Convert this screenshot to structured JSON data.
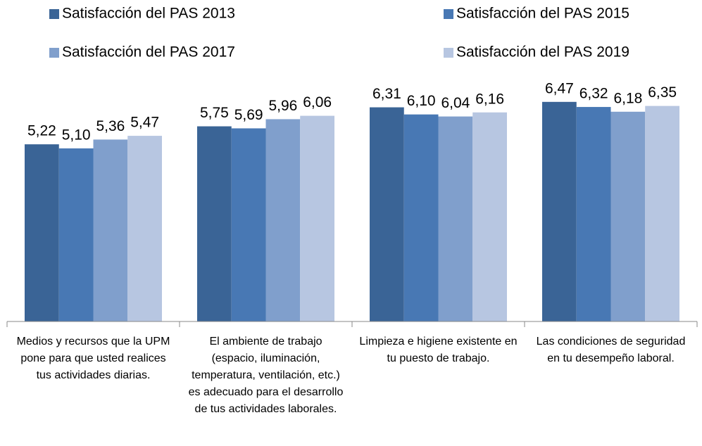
{
  "chart_data": {
    "type": "bar",
    "categories": [
      "Medios y recursos que la UPM pone para que usted realices tus actividades diarias.",
      "El ambiente de trabajo (espacio, iluminación, temperatura, ventilación, etc.) es adecuado para el desarrollo de tus actividades laborales.",
      "Limpieza e higiene existente en tu puesto de trabajo.",
      "Las condiciones de seguridad en tu desempeño laboral."
    ],
    "series": [
      {
        "name": "Satisfacción del PAS 2013",
        "color": "#3a6496",
        "values": [
          5.22,
          5.75,
          6.31,
          6.47
        ],
        "value_labels": [
          "5,22",
          "5,75",
          "6,31",
          "6,47"
        ]
      },
      {
        "name": "Satisfacción del PAS 2015",
        "color": "#4878b4",
        "values": [
          5.1,
          5.69,
          6.1,
          6.32
        ],
        "value_labels": [
          "5,10",
          "5,69",
          "6,10",
          "6,32"
        ]
      },
      {
        "name": "Satisfacción del PAS 2017",
        "color": "#809fcc",
        "values": [
          5.36,
          5.96,
          6.04,
          6.18
        ],
        "value_labels": [
          "5,36",
          "5,96",
          "6,04",
          "6,18"
        ]
      },
      {
        "name": "Satisfacción del PAS 2019",
        "color": "#b7c6e1",
        "values": [
          5.47,
          6.06,
          6.16,
          6.35
        ],
        "value_labels": [
          "5,47",
          "6,06",
          "6,16",
          "6,35"
        ]
      }
    ],
    "ylim": [
      0,
      7
    ]
  }
}
